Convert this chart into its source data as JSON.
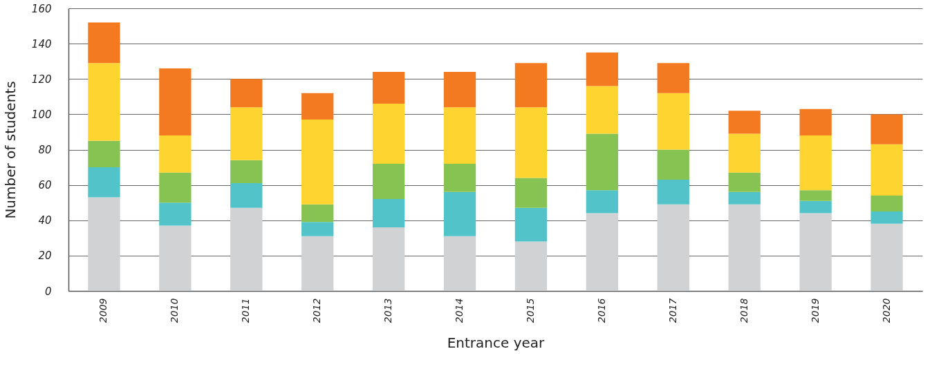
{
  "chart_data": {
    "type": "bar",
    "xlabel": "Entrance year",
    "ylabel": "Number of students",
    "categories": [
      "2009",
      "2010",
      "2011",
      "2012",
      "2013",
      "2014",
      "2015",
      "2016",
      "2017",
      "2018",
      "2019",
      "2020"
    ],
    "stacked": true,
    "grid": "y",
    "legend": false,
    "ylim": [
      0,
      160
    ],
    "yticks": [
      0,
      20,
      40,
      60,
      80,
      100,
      120,
      140,
      160
    ],
    "series": [
      {
        "color": "#d1d2d4",
        "values": [
          53,
          37,
          47,
          31,
          36,
          31,
          28,
          44,
          49,
          49,
          44,
          38
        ]
      },
      {
        "color": "#52c4c9",
        "values": [
          17,
          13,
          14,
          8,
          16,
          25,
          19,
          13,
          14,
          7,
          7,
          7
        ]
      },
      {
        "color": "#87c353",
        "values": [
          15,
          17,
          13,
          10,
          20,
          16,
          17,
          32,
          17,
          11,
          6,
          9
        ]
      },
      {
        "color": "#fed430",
        "values": [
          44,
          21,
          30,
          48,
          34,
          32,
          40,
          27,
          32,
          22,
          31,
          29
        ]
      },
      {
        "color": "#f47a21",
        "values": [
          23,
          38,
          16,
          15,
          18,
          20,
          25,
          19,
          17,
          13,
          15,
          17
        ]
      }
    ]
  }
}
